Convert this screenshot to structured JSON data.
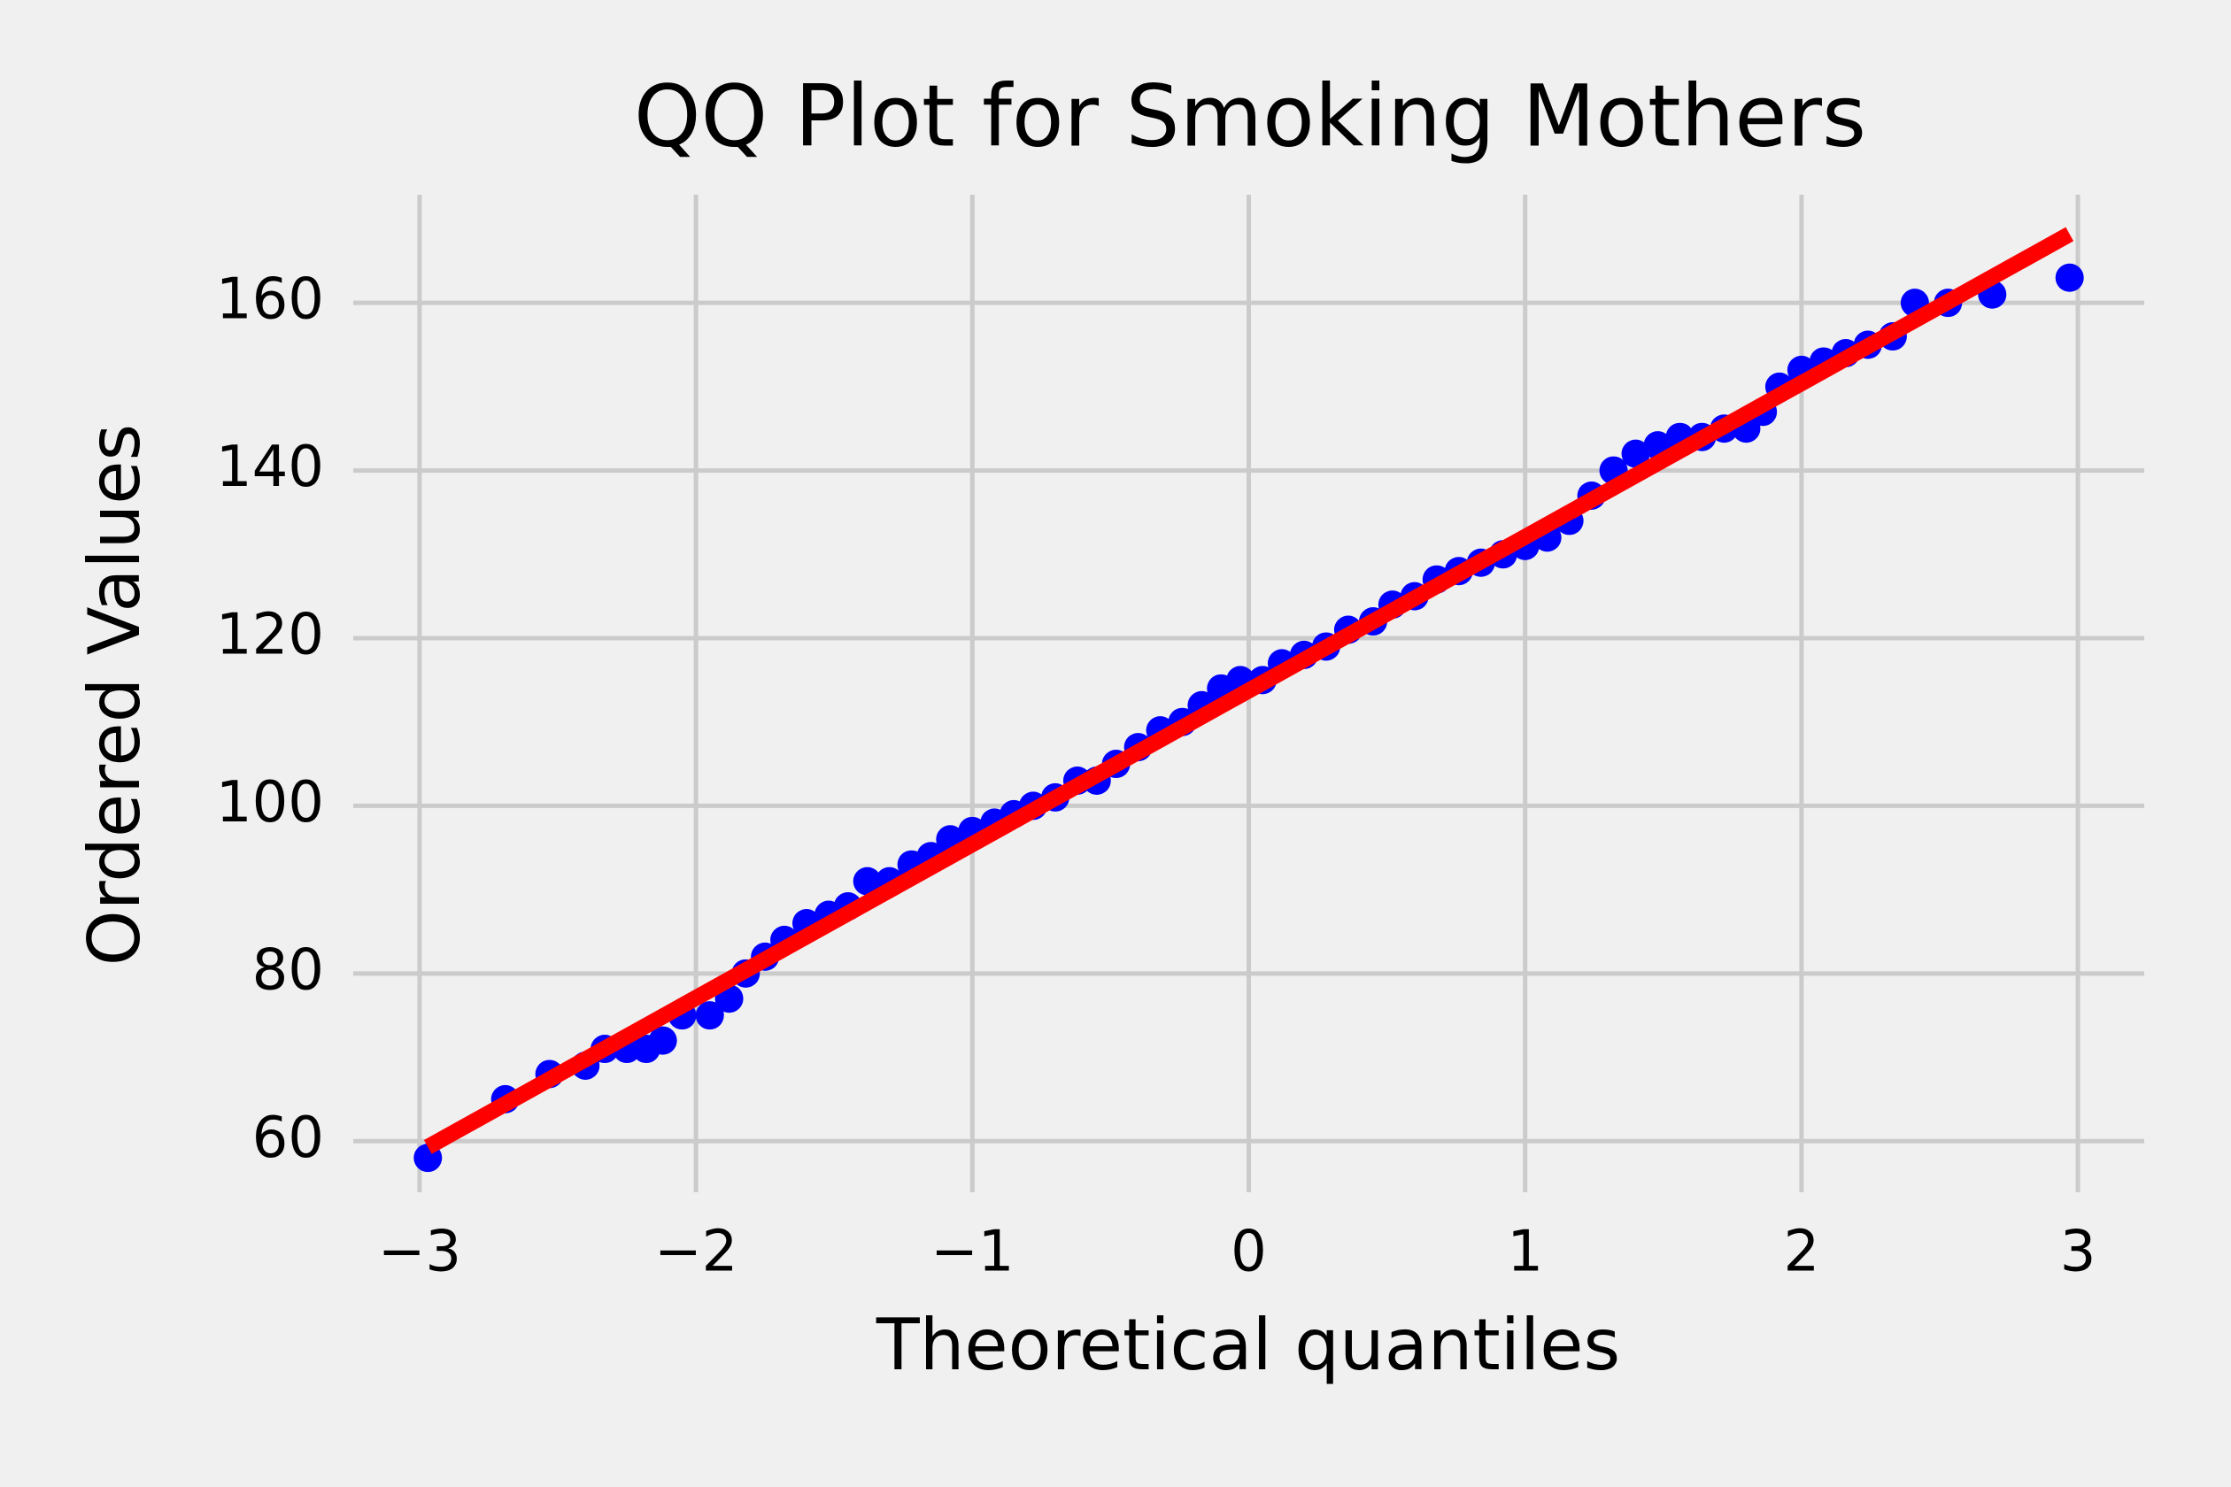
{
  "chart_data": {
    "type": "scatter",
    "title": "QQ Plot for Smoking Mothers",
    "x_label": "Theoretical quantiles",
    "y_label": "Ordered Values",
    "xlim": [
      -3.24,
      3.24
    ],
    "ylim": [
      53.9,
      172.9
    ],
    "xticks": [
      {
        "value": -3,
        "label": "−3"
      },
      {
        "value": -2,
        "label": "−2"
      },
      {
        "value": -1,
        "label": "−1"
      },
      0,
      1,
      2,
      3
    ],
    "yticks": [
      60,
      80,
      100,
      120,
      140,
      160
    ],
    "grid": true,
    "series": [
      {
        "style": "markers",
        "color": "#0000ff",
        "x": [
          -2.97,
          -2.69,
          -2.53,
          -2.4,
          -2.33,
          -2.25,
          -2.18,
          -2.12,
          -2.05,
          -1.95,
          -1.88,
          -1.82,
          -1.75,
          -1.68,
          -1.6,
          -1.52,
          -1.45,
          -1.38,
          -1.3,
          -1.22,
          -1.15,
          -1.08,
          -1.0,
          -0.92,
          -0.85,
          -0.78,
          -0.7,
          -0.62,
          -0.55,
          -0.48,
          -0.4,
          -0.32,
          -0.24,
          -0.17,
          -0.1,
          -0.03,
          0.05,
          0.12,
          0.2,
          0.28,
          0.36,
          0.45,
          0.52,
          0.6,
          0.68,
          0.76,
          0.84,
          0.92,
          1.0,
          1.08,
          1.16,
          1.24,
          1.32,
          1.4,
          1.48,
          1.56,
          1.64,
          1.72,
          1.8,
          1.86,
          1.92,
          2.0,
          2.08,
          2.16,
          2.24,
          2.33,
          2.41,
          2.53,
          2.69,
          2.97
        ],
        "values": [
          58,
          65,
          68,
          69,
          71,
          71,
          71,
          72,
          75,
          75,
          77,
          80,
          82,
          84,
          86,
          87,
          88,
          91,
          91,
          93,
          94,
          96,
          97,
          98,
          99,
          100,
          101,
          103,
          103,
          105,
          107,
          109,
          110,
          112,
          114,
          115,
          115,
          117,
          118,
          119,
          121,
          122,
          124,
          125,
          127,
          128,
          129,
          130,
          131,
          132,
          134,
          137,
          140,
          142,
          143,
          144,
          144,
          145,
          145,
          147,
          150,
          152,
          153,
          154,
          155,
          156,
          160,
          160,
          161,
          163
        ]
      },
      {
        "style": "line",
        "color": "#ff0000",
        "x": [
          -2.97,
          2.97
        ],
        "values": [
          59.3,
          168.2
        ]
      }
    ]
  }
}
